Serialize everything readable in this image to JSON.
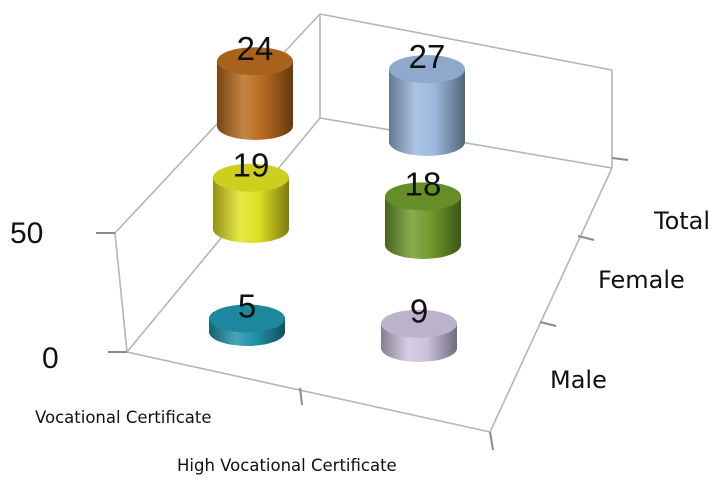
{
  "chart_data": {
    "type": "bar",
    "bar_shape": "cylinder-3d",
    "categories": [
      "Vocational Certificate",
      "High Vocational Certificate"
    ],
    "series": [
      {
        "name": "Male",
        "values": [
          5,
          9
        ],
        "colors": [
          "#1f93ab",
          "#cdc2dd"
        ]
      },
      {
        "name": "Female",
        "values": [
          19,
          18
        ],
        "colors": [
          "#e0e021",
          "#6f9a2b"
        ]
      },
      {
        "name": "Total",
        "values": [
          24,
          27
        ],
        "colors": [
          "#b76a1c",
          "#9ab8de"
        ]
      }
    ],
    "z_ticks": [
      "0",
      "50"
    ],
    "zlim": [
      0,
      50
    ],
    "title": "",
    "xlabel": "",
    "ylabel": "",
    "grid": false,
    "legend": "none"
  }
}
